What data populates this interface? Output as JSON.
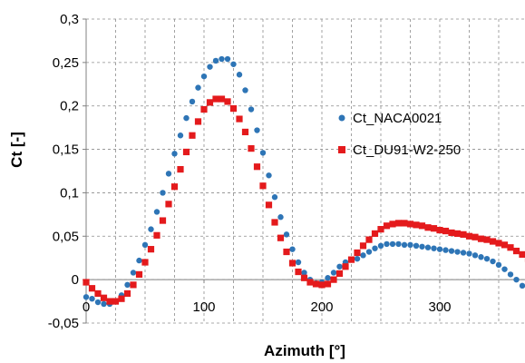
{
  "chart_data": {
    "type": "scatter",
    "title": "",
    "xlabel": "Azimuth [°]",
    "ylabel": "Ct [-]",
    "xlim": [
      0,
      360
    ],
    "ylim": [
      -0.05,
      0.3
    ],
    "x_ticks": [
      0,
      100,
      200,
      300
    ],
    "x_tick_labels": [
      "0",
      "100",
      "200",
      "300"
    ],
    "y_ticks": [
      -0.05,
      0,
      0.05,
      0.1,
      0.15,
      0.2,
      0.25,
      0.3
    ],
    "y_tick_labels": [
      "-0,05",
      "0",
      "0,05",
      "0,1",
      "0,15",
      "0,2",
      "0,25",
      "0,3"
    ],
    "grid": {
      "x": true,
      "y": true,
      "style": "dashed"
    },
    "legend": {
      "position": "right"
    },
    "series": [
      {
        "name": "Ct_NACA0021",
        "marker": "circle",
        "color": "#2e75b6",
        "points": [
          [
            0,
            -0.02
          ],
          [
            5,
            -0.022
          ],
          [
            10,
            -0.026
          ],
          [
            15,
            -0.028
          ],
          [
            20,
            -0.028
          ],
          [
            25,
            -0.025
          ],
          [
            30,
            -0.018
          ],
          [
            35,
            -0.006
          ],
          [
            40,
            0.008
          ],
          [
            45,
            0.022
          ],
          [
            50,
            0.04
          ],
          [
            55,
            0.058
          ],
          [
            60,
            0.078
          ],
          [
            65,
            0.1
          ],
          [
            70,
            0.122
          ],
          [
            75,
            0.145
          ],
          [
            80,
            0.166
          ],
          [
            85,
            0.186
          ],
          [
            90,
            0.205
          ],
          [
            95,
            0.221
          ],
          [
            100,
            0.234
          ],
          [
            105,
            0.245
          ],
          [
            110,
            0.252
          ],
          [
            115,
            0.254
          ],
          [
            120,
            0.254
          ],
          [
            125,
            0.248
          ],
          [
            130,
            0.236
          ],
          [
            135,
            0.218
          ],
          [
            140,
            0.196
          ],
          [
            145,
            0.172
          ],
          [
            150,
            0.146
          ],
          [
            155,
            0.12
          ],
          [
            160,
            0.095
          ],
          [
            165,
            0.072
          ],
          [
            170,
            0.052
          ],
          [
            175,
            0.035
          ],
          [
            180,
            0.02
          ],
          [
            185,
            0.008
          ],
          [
            190,
            0.0
          ],
          [
            195,
            -0.004
          ],
          [
            200,
            -0.003
          ],
          [
            205,
            0.002
          ],
          [
            210,
            0.008
          ],
          [
            215,
            0.015
          ],
          [
            220,
            0.02
          ],
          [
            225,
            0.023
          ],
          [
            230,
            0.024
          ],
          [
            235,
            0.028
          ],
          [
            240,
            0.032
          ],
          [
            245,
            0.036
          ],
          [
            250,
            0.039
          ],
          [
            255,
            0.041
          ],
          [
            260,
            0.041
          ],
          [
            265,
            0.041
          ],
          [
            270,
            0.04
          ],
          [
            275,
            0.04
          ],
          [
            280,
            0.039
          ],
          [
            285,
            0.038
          ],
          [
            290,
            0.037
          ],
          [
            295,
            0.036
          ],
          [
            300,
            0.035
          ],
          [
            305,
            0.034
          ],
          [
            310,
            0.033
          ],
          [
            315,
            0.032
          ],
          [
            320,
            0.031
          ],
          [
            325,
            0.03
          ],
          [
            330,
            0.028
          ],
          [
            335,
            0.026
          ],
          [
            340,
            0.024
          ],
          [
            345,
            0.021
          ],
          [
            350,
            0.017
          ],
          [
            355,
            0.012
          ],
          [
            360,
            0.006
          ],
          [
            365,
            0.0
          ],
          [
            370,
            -0.007
          ],
          [
            375,
            -0.015
          ]
        ]
      },
      {
        "name": "Ct_DU91-W2-250",
        "marker": "square",
        "color": "#e41a1c",
        "points": [
          [
            0,
            -0.003
          ],
          [
            5,
            -0.01
          ],
          [
            10,
            -0.016
          ],
          [
            15,
            -0.021
          ],
          [
            20,
            -0.025
          ],
          [
            25,
            -0.025
          ],
          [
            30,
            -0.022
          ],
          [
            35,
            -0.016
          ],
          [
            40,
            -0.006
          ],
          [
            45,
            0.006
          ],
          [
            50,
            0.02
          ],
          [
            55,
            0.035
          ],
          [
            60,
            0.051
          ],
          [
            65,
            0.068
          ],
          [
            70,
            0.087
          ],
          [
            75,
            0.107
          ],
          [
            80,
            0.127
          ],
          [
            85,
            0.147
          ],
          [
            90,
            0.166
          ],
          [
            95,
            0.182
          ],
          [
            100,
            0.196
          ],
          [
            105,
            0.204
          ],
          [
            110,
            0.208
          ],
          [
            115,
            0.208
          ],
          [
            120,
            0.205
          ],
          [
            125,
            0.197
          ],
          [
            130,
            0.185
          ],
          [
            135,
            0.17
          ],
          [
            140,
            0.151
          ],
          [
            145,
            0.13
          ],
          [
            150,
            0.108
          ],
          [
            155,
            0.086
          ],
          [
            160,
            0.066
          ],
          [
            165,
            0.048
          ],
          [
            170,
            0.032
          ],
          [
            175,
            0.019
          ],
          [
            180,
            0.009
          ],
          [
            185,
            0.002
          ],
          [
            190,
            -0.003
          ],
          [
            195,
            -0.005
          ],
          [
            200,
            -0.006
          ],
          [
            205,
            -0.005
          ],
          [
            210,
            0.0
          ],
          [
            215,
            0.007
          ],
          [
            220,
            0.015
          ],
          [
            225,
            0.023
          ],
          [
            230,
            0.031
          ],
          [
            235,
            0.039
          ],
          [
            240,
            0.046
          ],
          [
            245,
            0.053
          ],
          [
            250,
            0.058
          ],
          [
            255,
            0.062
          ],
          [
            260,
            0.064
          ],
          [
            265,
            0.065
          ],
          [
            270,
            0.065
          ],
          [
            275,
            0.064
          ],
          [
            280,
            0.063
          ],
          [
            285,
            0.062
          ],
          [
            290,
            0.06
          ],
          [
            295,
            0.059
          ],
          [
            300,
            0.057
          ],
          [
            305,
            0.056
          ],
          [
            310,
            0.054
          ],
          [
            315,
            0.053
          ],
          [
            320,
            0.052
          ],
          [
            325,
            0.05
          ],
          [
            330,
            0.049
          ],
          [
            335,
            0.047
          ],
          [
            340,
            0.046
          ],
          [
            345,
            0.044
          ],
          [
            350,
            0.042
          ],
          [
            355,
            0.04
          ],
          [
            360,
            0.037
          ],
          [
            365,
            0.033
          ],
          [
            370,
            0.029
          ],
          [
            375,
            0.024
          ],
          [
            380,
            0.018
          ],
          [
            385,
            0.012
          ],
          [
            390,
            0.006
          ]
        ]
      }
    ]
  }
}
